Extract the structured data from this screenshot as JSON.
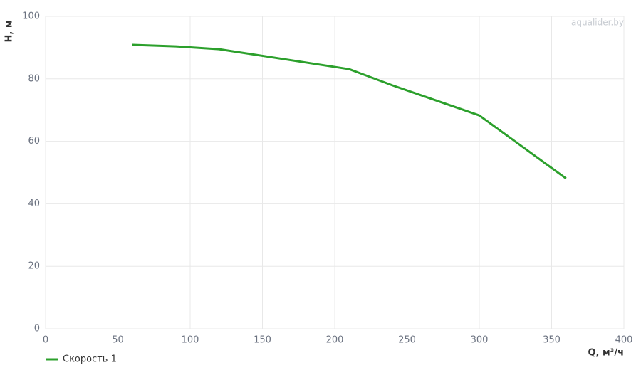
{
  "chart_data": {
    "type": "line",
    "x_label": "Q, м³/ч",
    "y_label": "H, м",
    "watermark": "aqualider.by",
    "x": [
      60,
      90,
      120,
      210,
      240,
      300,
      360
    ],
    "series": [
      {
        "name": "Скорость 1",
        "color": "#2ca02c",
        "values": [
          90.9,
          90.4,
          89.5,
          83.1,
          77.9,
          68.3,
          48.1
        ]
      }
    ],
    "xlim": [
      0,
      400
    ],
    "xticks": [
      0,
      50,
      100,
      150,
      200,
      250,
      300,
      350,
      400
    ],
    "ylim": [
      0,
      100
    ],
    "yticks": [
      0,
      20,
      40,
      60,
      80,
      100
    ],
    "grid": true,
    "legend": "bottom-left"
  }
}
